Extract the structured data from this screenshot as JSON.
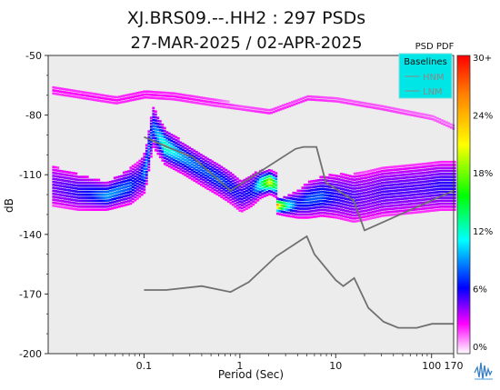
{
  "chart_data": {
    "type": "heatmap",
    "title": "XJ.BRS09.--.HH2 : 297 PSDs",
    "subtitle": "27-MAR-2025 / 02-APR-2025",
    "xlabel": "Period (Sec)",
    "ylabel": "dB",
    "xscale": "log",
    "xlim": [
      0.01,
      170
    ],
    "ylim": [
      -200,
      -50
    ],
    "x_ticks": [
      {
        "value": 0.1,
        "label": "0.1"
      },
      {
        "value": 1,
        "label": "1"
      },
      {
        "value": 10,
        "label": "10"
      },
      {
        "value": 100,
        "label": "100"
      },
      {
        "value": 170,
        "label": "170"
      }
    ],
    "y_ticks": [
      {
        "value": -50,
        "label": "-50"
      },
      {
        "value": -80,
        "label": "-80"
      },
      {
        "value": -110,
        "label": "-110"
      },
      {
        "value": -140,
        "label": "-140"
      },
      {
        "value": -170,
        "label": "-170"
      },
      {
        "value": -200,
        "label": "-200"
      }
    ],
    "colorbar": {
      "title": "PSD PDF",
      "ticks": [
        "30+",
        "24%",
        "18%",
        "12%",
        "6%",
        "0%"
      ],
      "colors": [
        "#ff0000",
        "#ff8000",
        "#ffff00",
        "#00ff00",
        "#00ffff",
        "#0000ff",
        "#ff00ff",
        "#ffffff"
      ]
    },
    "legend": {
      "title": "Baselines",
      "placement": "top-right",
      "entries": [
        "HNM",
        "LNM"
      ],
      "background": "#00e5e5"
    },
    "baselines": [
      {
        "name": "HNM",
        "color": "#707070",
        "x": [
          0.1,
          0.22,
          0.32,
          0.8,
          3.8,
          4.6,
          6.3,
          7.9,
          15.4,
          20,
          170
        ],
        "y": [
          -91,
          -98,
          -101,
          -118,
          -97,
          -96,
          -96,
          -114,
          -123,
          -138,
          -118
        ]
      },
      {
        "name": "LNM",
        "color": "#707070",
        "x": [
          0.1,
          0.17,
          0.4,
          0.8,
          1.24,
          2.4,
          4.3,
          5,
          6,
          10,
          12,
          15.6,
          21.9,
          31.6,
          45,
          70,
          101,
          154,
          170
        ],
        "y": [
          -168,
          -168,
          -166,
          -169,
          -164,
          -151,
          -143,
          -141,
          -150,
          -163,
          -166,
          -162,
          -177,
          -184,
          -187,
          -187,
          -185,
          -185,
          -185
        ]
      }
    ],
    "density_bands": [
      {
        "x": [
          0.011,
          0.02,
          0.04,
          0.07,
          0.085,
          0.1,
          0.12,
          0.16,
          0.25,
          0.4,
          0.6,
          0.8,
          1.0,
          1.3,
          1.6,
          2.0,
          2.4
        ],
        "center": [
          -115,
          -118,
          -120,
          -115,
          -112,
          -108,
          -85,
          -95,
          -101,
          -107,
          -112,
          -116,
          -120,
          -117,
          -114,
          -113,
          -115
        ],
        "halfwidth": [
          10,
          9,
          7,
          9,
          9,
          10,
          10,
          9,
          8,
          8,
          8,
          8,
          8,
          8,
          7,
          6,
          6
        ],
        "peak": [
          0.35,
          0.45,
          0.6,
          0.55,
          0.45,
          0.6,
          0.55,
          0.7,
          0.6,
          0.55,
          0.55,
          0.5,
          0.45,
          0.5,
          0.7,
          0.9,
          0.7
        ]
      },
      {
        "x": [
          2.4,
          3,
          4,
          5,
          7,
          10,
          15,
          20,
          30,
          50,
          80,
          120,
          170
        ],
        "center": [
          -125,
          -125,
          -124,
          -122,
          -120,
          -120,
          -121,
          -120,
          -118,
          -117,
          -116,
          -115,
          -115
        ],
        "halfwidth": [
          4,
          5,
          7,
          9,
          10,
          11,
          12,
          12,
          12,
          12,
          12,
          12,
          12
        ],
        "peak": [
          0.95,
          0.7,
          0.5,
          0.55,
          0.55,
          0.45,
          0.4,
          0.35,
          0.4,
          0.4,
          0.4,
          0.45,
          0.45
        ]
      },
      {
        "x": [
          0.011,
          0.02,
          0.05,
          0.1,
          0.2,
          0.5,
          1,
          2,
          5,
          10,
          30,
          100,
          170
        ],
        "center": [
          -67,
          -69,
          -72,
          -69,
          -70,
          -73,
          -76,
          -78,
          -71,
          -72,
          -76,
          -81,
          -86
        ],
        "halfwidth": [
          3,
          3,
          3,
          3,
          3,
          3,
          2,
          2,
          2,
          2,
          2,
          2,
          2
        ],
        "peak": [
          0.08,
          0.08,
          0.08,
          0.09,
          0.08,
          0.07,
          0.06,
          0.07,
          0.07,
          0.06,
          0.06,
          0.05,
          0.05
        ]
      }
    ]
  }
}
